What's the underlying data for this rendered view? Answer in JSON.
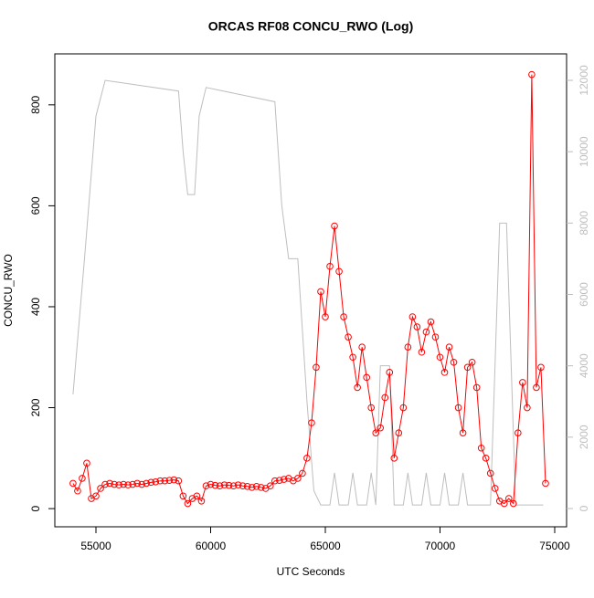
{
  "chart_data": {
    "type": "line",
    "title": "ORCAS RF08 CONCU_RWO (Log)",
    "x_label": "UTC Seconds",
    "y_label": "CONCU_RWO",
    "xlim": [
      53207,
      75518
    ],
    "ylim": [
      -36,
      901
    ],
    "y2lim": [
      -512,
      12742
    ],
    "xticks": [
      55000,
      60000,
      65000,
      70000,
      75000
    ],
    "yticks": [
      0,
      200,
      400,
      600,
      800
    ],
    "y2ticks": [
      0,
      2000,
      4000,
      6000,
      8000,
      10000,
      12000
    ],
    "series": [
      {
        "color": "#ff0000",
        "marker": "circle",
        "x": [
          54000,
          54200,
          54400,
          54600,
          54800,
          55000,
          55200,
          55400,
          55600,
          55800,
          56000,
          56200,
          56400,
          56600,
          56800,
          57000,
          57200,
          57400,
          57600,
          57800,
          58000,
          58200,
          58400,
          58600,
          58800,
          59000,
          59200,
          59400,
          59600,
          59800,
          60000,
          60200,
          60400,
          60600,
          60800,
          61000,
          61200,
          61400,
          61600,
          61800,
          62000,
          62200,
          62400,
          62600,
          62800,
          63000,
          63200,
          63400,
          63600,
          63800,
          64000,
          64200,
          64400,
          64600,
          64800,
          65000,
          65200,
          65400,
          65600,
          65800,
          66000,
          66200,
          66400,
          66600,
          66800,
          67000,
          67200,
          67400,
          67600,
          67800,
          68000,
          68200,
          68400,
          68600,
          68800,
          69000,
          69200,
          69400,
          69600,
          69800,
          70000,
          70200,
          70400,
          70600,
          70800,
          71000,
          71200,
          71400,
          71600,
          71800,
          72000,
          72200,
          72400,
          72600,
          72800,
          73000,
          73200,
          73400,
          73600,
          73800,
          74000,
          74200,
          74400,
          74600
        ],
        "values": [
          50,
          35,
          60,
          90,
          20,
          25,
          40,
          48,
          50,
          48,
          47,
          48,
          47,
          48,
          50,
          48,
          50,
          52,
          53,
          55,
          55,
          56,
          57,
          55,
          25,
          10,
          20,
          25,
          15,
          45,
          48,
          46,
          45,
          47,
          46,
          45,
          47,
          45,
          44,
          42,
          44,
          42,
          40,
          45,
          55,
          56,
          58,
          60,
          55,
          60,
          70,
          100,
          170,
          280,
          430,
          380,
          480,
          560,
          470,
          380,
          340,
          300,
          240,
          320,
          260,
          200,
          150,
          160,
          220,
          270,
          100,
          150,
          200,
          320,
          380,
          360,
          310,
          350,
          370,
          340,
          300,
          270,
          320,
          290,
          200,
          150,
          280,
          290,
          240,
          120,
          100,
          70,
          40,
          15,
          10,
          20,
          10,
          150,
          250,
          200,
          860,
          240,
          280,
          50
        ]
      },
      {
        "color": "#bebebe",
        "axis": "y2",
        "x": [
          54000,
          54500,
          55000,
          55400,
          58600,
          58800,
          59000,
          59300,
          59500,
          59800,
          62800,
          63100,
          63400,
          63800,
          64200,
          64500,
          64800,
          65200,
          65400,
          65600,
          66000,
          66200,
          66400,
          66800,
          67000,
          67200,
          67400,
          67800,
          68000,
          68400,
          68600,
          68800,
          69200,
          69400,
          69600,
          70000,
          70200,
          70400,
          70800,
          71000,
          71200,
          72200,
          72600,
          72900,
          73300,
          74500
        ],
        "values": [
          3200,
          7000,
          11000,
          12000,
          11700,
          10000,
          8800,
          8800,
          11000,
          11800,
          11400,
          8500,
          7000,
          7000,
          3000,
          500,
          100,
          100,
          1000,
          100,
          100,
          1000,
          100,
          100,
          1000,
          100,
          4000,
          4000,
          100,
          100,
          1000,
          100,
          100,
          1000,
          100,
          100,
          1000,
          100,
          100,
          1000,
          100,
          100,
          8000,
          8000,
          100,
          100
        ]
      }
    ]
  }
}
